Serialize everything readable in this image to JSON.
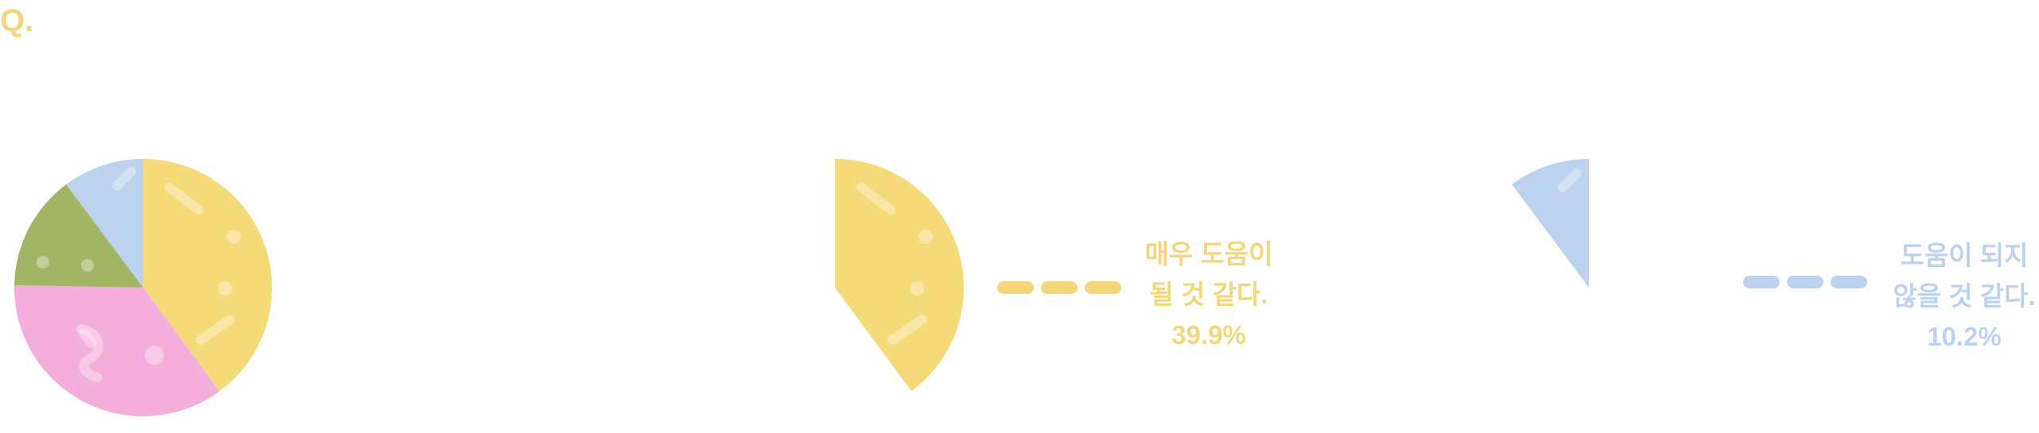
{
  "header": {
    "q_label": "Q."
  },
  "colors": {
    "yellow": "#f5da7a",
    "pink": "#f4aedb",
    "green": "#a1b564",
    "blue": "#bcd2ee",
    "yellow_text": "#f3d77a",
    "blue_text": "#bcd2ee"
  },
  "chart_data": {
    "type": "pie",
    "title": "",
    "slices": [
      {
        "label": "매우 도움이 될 것 같다.",
        "value": 39.9,
        "color": "#f5da7a"
      },
      {
        "label": "",
        "value": 35.4,
        "color": "#f4aedb"
      },
      {
        "label": "",
        "value": 14.5,
        "color": "#a1b564"
      },
      {
        "label": "도움이 되지 않을 것 같다.",
        "value": 10.2,
        "color": "#bcd2ee"
      }
    ],
    "start": "12 o'clock, clockwise",
    "highlights": [
      {
        "slice": 0,
        "lines": [
          "매우 도움이",
          "될 것 같다."
        ],
        "percent_text": "39.9%",
        "color": "#f3d77a"
      },
      {
        "slice": 3,
        "lines": [
          "도움이 되지",
          "않을 것 같다."
        ],
        "percent_text": "10.2%",
        "color": "#bcd2ee"
      }
    ]
  }
}
